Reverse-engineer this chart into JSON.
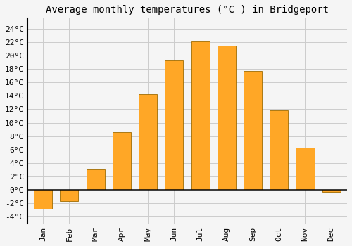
{
  "title": "Average monthly temperatures (°C ) in Bridgeport",
  "months": [
    "Jan",
    "Feb",
    "Mar",
    "Apr",
    "May",
    "Jun",
    "Jul",
    "Aug",
    "Sep",
    "Oct",
    "Nov",
    "Dec"
  ],
  "values": [
    -2.8,
    -1.7,
    3.0,
    8.6,
    14.2,
    19.3,
    22.1,
    21.4,
    17.7,
    11.8,
    6.3,
    -0.3
  ],
  "bar_color": "#FFA726",
  "bar_edge_color": "#9E6B00",
  "background_color": "#F5F5F5",
  "grid_color": "#CCCCCC",
  "yticks": [
    -4,
    -2,
    0,
    2,
    4,
    6,
    8,
    10,
    12,
    14,
    16,
    18,
    20,
    22,
    24
  ],
  "ylim": [
    -5.0,
    25.5
  ],
  "title_fontsize": 10,
  "tick_fontsize": 8,
  "font_family": "monospace",
  "bar_width": 0.7
}
